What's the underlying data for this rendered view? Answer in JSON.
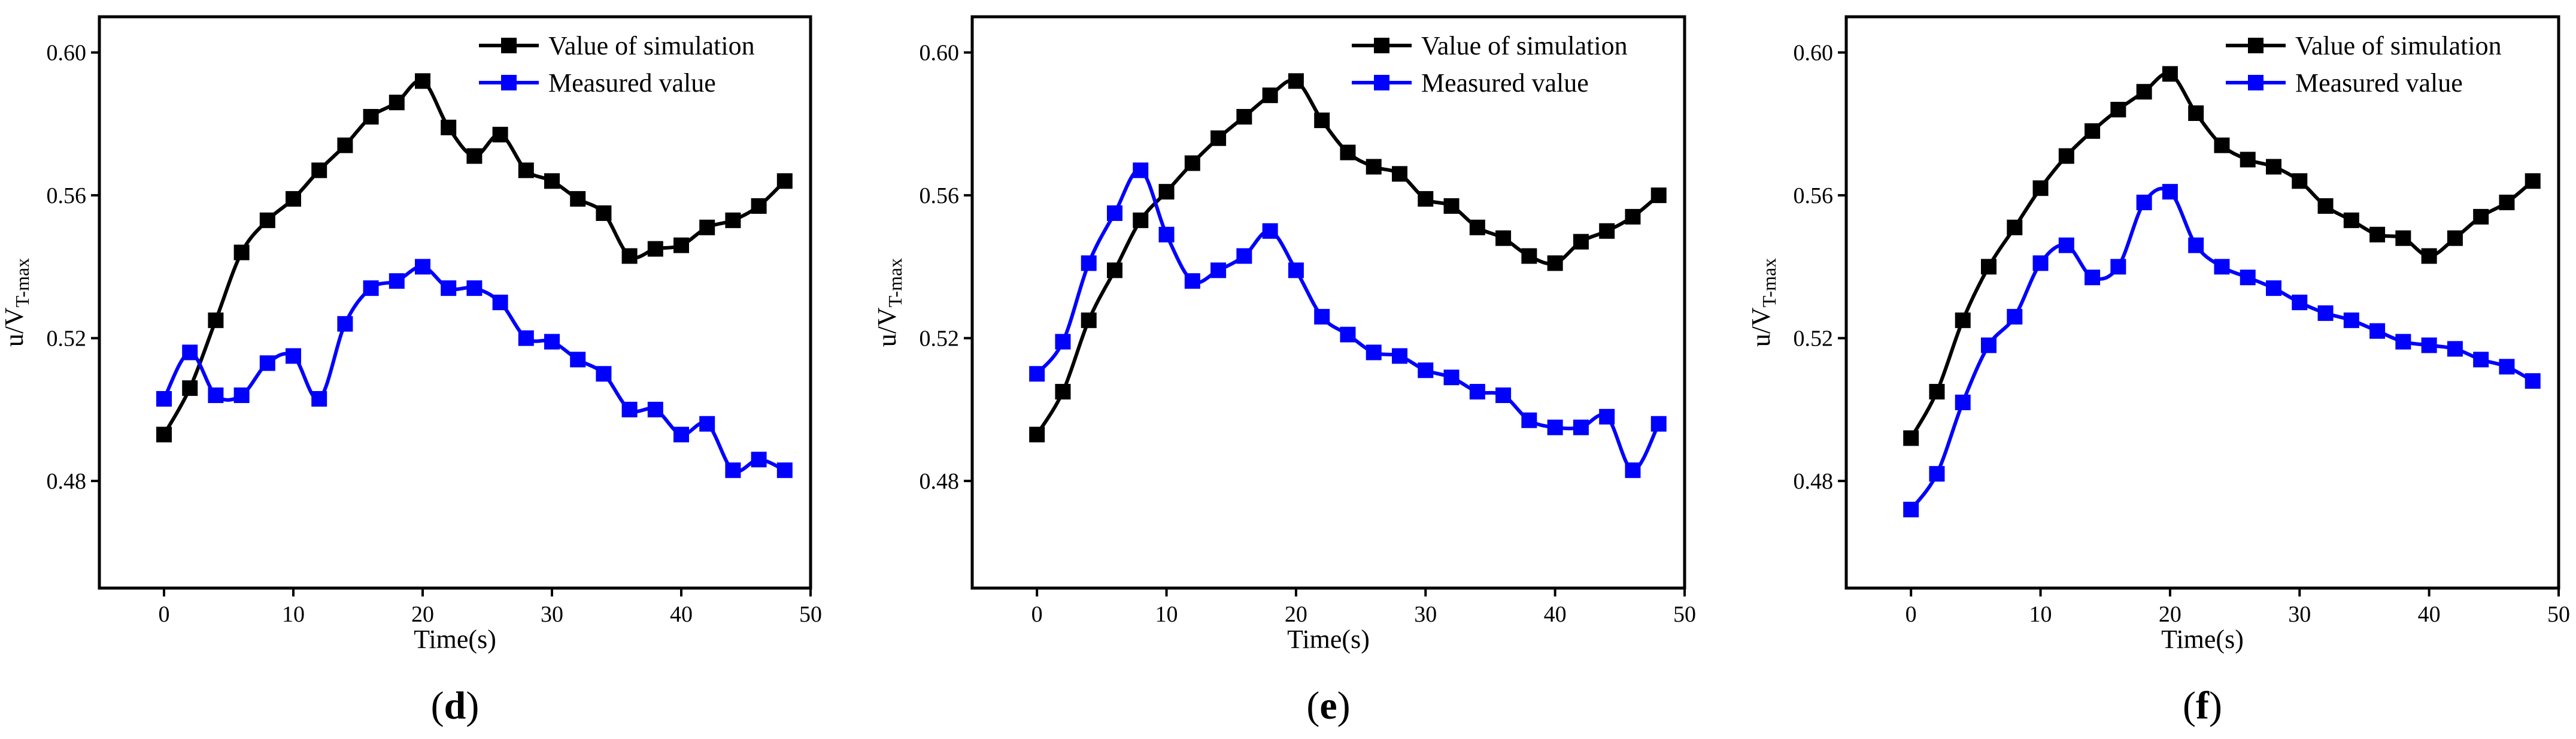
{
  "colors": {
    "simulation": "#000000",
    "measured": "#0000ff",
    "axis": "#000000",
    "background": "#ffffff"
  },
  "marker_shape": "square",
  "chart_data": [
    {
      "type": "line",
      "panel_label": "d",
      "xlabel": "Time(s)",
      "ylabel": "u/V",
      "ylabel_subscript": "T-max",
      "xlim": [
        -5,
        50
      ],
      "ylim": [
        0.45,
        0.61
      ],
      "xticks": [
        0,
        10,
        20,
        30,
        40,
        50
      ],
      "xtick_labels": [
        "0",
        "10",
        "20",
        "30",
        "40",
        "50"
      ],
      "yticks": [
        0.48,
        0.52,
        0.56,
        0.6
      ],
      "ytick_labels": [
        "0.48",
        "0.52",
        "0.56",
        "0.60"
      ],
      "legend_position": "top-right",
      "x": [
        0,
        2,
        4,
        6,
        8,
        10,
        12,
        14,
        16,
        18,
        20,
        22,
        24,
        26,
        28,
        30,
        32,
        34,
        36,
        38,
        40,
        42,
        44,
        46,
        48
      ],
      "series": [
        {
          "name": "Value of simulation",
          "color_key": "simulation",
          "values": [
            0.493,
            0.506,
            0.525,
            0.544,
            0.553,
            0.559,
            0.567,
            0.574,
            0.582,
            0.586,
            0.592,
            0.579,
            0.571,
            0.577,
            0.567,
            0.564,
            0.559,
            0.555,
            0.543,
            0.545,
            0.546,
            0.551,
            0.553,
            0.557,
            0.564
          ]
        },
        {
          "name": "Measured value",
          "color_key": "measured",
          "values": [
            0.503,
            0.516,
            0.504,
            0.504,
            0.513,
            0.515,
            0.503,
            0.524,
            0.534,
            0.536,
            0.54,
            0.534,
            0.534,
            0.53,
            0.52,
            0.519,
            0.514,
            0.51,
            0.5,
            0.5,
            0.493,
            0.496,
            0.483,
            0.486,
            0.483
          ]
        }
      ]
    },
    {
      "type": "line",
      "panel_label": "e",
      "xlabel": "Time(s)",
      "ylabel": "u/V",
      "ylabel_subscript": "T-max",
      "xlim": [
        -5,
        50
      ],
      "ylim": [
        0.45,
        0.61
      ],
      "xticks": [
        0,
        10,
        20,
        30,
        40,
        50
      ],
      "xtick_labels": [
        "0",
        "10",
        "20",
        "30",
        "40",
        "50"
      ],
      "yticks": [
        0.48,
        0.52,
        0.56,
        0.6
      ],
      "ytick_labels": [
        "0.48",
        "0.52",
        "0.56",
        "0.60"
      ],
      "legend_position": "top-right",
      "x": [
        0,
        2,
        4,
        6,
        8,
        10,
        12,
        14,
        16,
        18,
        20,
        22,
        24,
        26,
        28,
        30,
        32,
        34,
        36,
        38,
        40,
        42,
        44,
        46,
        48
      ],
      "series": [
        {
          "name": "Value of simulation",
          "color_key": "simulation",
          "values": [
            0.493,
            0.505,
            0.525,
            0.539,
            0.553,
            0.561,
            0.569,
            0.576,
            0.582,
            0.588,
            0.592,
            0.581,
            0.572,
            0.568,
            0.566,
            0.559,
            0.557,
            0.551,
            0.548,
            0.543,
            0.541,
            0.547,
            0.55,
            0.554,
            0.56
          ]
        },
        {
          "name": "Measured value",
          "color_key": "measured",
          "values": [
            0.51,
            0.519,
            0.541,
            0.555,
            0.567,
            0.549,
            0.536,
            0.539,
            0.543,
            0.55,
            0.539,
            0.526,
            0.521,
            0.516,
            0.515,
            0.511,
            0.509,
            0.505,
            0.504,
            0.497,
            0.495,
            0.495,
            0.498,
            0.483,
            0.496
          ]
        }
      ]
    },
    {
      "type": "line",
      "panel_label": "f",
      "xlabel": "Time(s)",
      "ylabel": "u/V",
      "ylabel_subscript": "T-max",
      "xlim": [
        -5,
        50
      ],
      "ylim": [
        0.45,
        0.61
      ],
      "xticks": [
        0,
        10,
        20,
        30,
        40,
        50
      ],
      "xtick_labels": [
        "0",
        "10",
        "20",
        "30",
        "40",
        "50"
      ],
      "yticks": [
        0.48,
        0.52,
        0.56,
        0.6
      ],
      "ytick_labels": [
        "0.48",
        "0.52",
        "0.56",
        "0.60"
      ],
      "legend_position": "top-right",
      "x": [
        0,
        2,
        4,
        6,
        8,
        10,
        12,
        14,
        16,
        18,
        20,
        22,
        24,
        26,
        28,
        30,
        32,
        34,
        36,
        38,
        40,
        42,
        44,
        46,
        48
      ],
      "series": [
        {
          "name": "Value of simulation",
          "color_key": "simulation",
          "values": [
            0.492,
            0.505,
            0.525,
            0.54,
            0.551,
            0.562,
            0.571,
            0.578,
            0.584,
            0.589,
            0.594,
            0.583,
            0.574,
            0.57,
            0.568,
            0.564,
            0.557,
            0.553,
            0.549,
            0.548,
            0.543,
            0.548,
            0.554,
            0.558,
            0.564
          ]
        },
        {
          "name": "Measured value",
          "color_key": "measured",
          "values": [
            0.472,
            0.482,
            0.502,
            0.518,
            0.526,
            0.541,
            0.546,
            0.537,
            0.54,
            0.558,
            0.561,
            0.546,
            0.54,
            0.537,
            0.534,
            0.53,
            0.527,
            0.525,
            0.522,
            0.519,
            0.518,
            0.517,
            0.514,
            0.512,
            0.508
          ]
        }
      ]
    }
  ]
}
